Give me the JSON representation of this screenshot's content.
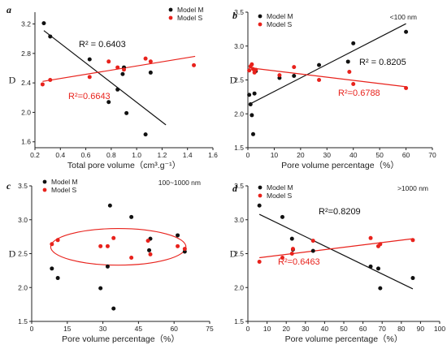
{
  "colors": {
    "model_m": "#111111",
    "model_s": "#e8221c",
    "axis": "#222222"
  },
  "chart_data": [
    {
      "type": "scatter",
      "panel_label": "a",
      "xlabel": "Total pore volume（cm³.g⁻¹）",
      "ylabel": "D",
      "xlim": [
        0.2,
        1.6
      ],
      "ylim": [
        1.52,
        3.36
      ],
      "xticks": [
        0.2,
        0.4,
        0.6,
        0.8,
        1.0,
        1.2,
        1.4,
        1.6
      ],
      "yticks": [
        1.6,
        2.0,
        2.4,
        2.8,
        3.2
      ],
      "xtick_labels": [
        "0.2",
        "0.4",
        "0.6",
        "0.8",
        "1.0",
        "1.2",
        "1.4",
        "1.6"
      ],
      "ytick_labels": [
        "1.6",
        "2.0",
        "2.4",
        "2.8",
        "3.2"
      ],
      "note": "",
      "legend": "top-right",
      "series": [
        {
          "name": "Model M",
          "x": [
            0.27,
            0.32,
            0.63,
            0.78,
            0.85,
            0.89,
            0.9,
            0.92,
            1.07,
            1.11
          ],
          "y": [
            3.21,
            3.03,
            2.72,
            2.14,
            2.31,
            2.52,
            2.61,
            1.99,
            1.7,
            2.54
          ]
        },
        {
          "name": "Model S",
          "x": [
            0.26,
            0.32,
            0.63,
            0.78,
            0.85,
            0.9,
            1.07,
            1.11,
            1.45
          ],
          "y": [
            2.38,
            2.44,
            2.48,
            2.69,
            2.61,
            2.58,
            2.73,
            2.69,
            2.64
          ]
        }
      ],
      "fits": [
        {
          "series": "Model M",
          "x": [
            0.27,
            1.23
          ],
          "y": [
            3.11,
            1.83
          ],
          "label": "R² = 0.6403"
        },
        {
          "series": "Model S",
          "x": [
            0.26,
            1.46
          ],
          "y": [
            2.42,
            2.76
          ],
          "label": "R²=0.6643"
        }
      ]
    },
    {
      "type": "scatter",
      "panel_label": "b",
      "xlabel": "Pore volume percentage（%）",
      "ylabel": "D",
      "xlim": [
        0,
        70
      ],
      "ylim": [
        1.5,
        3.5
      ],
      "xticks": [
        0,
        10,
        20,
        30,
        40,
        50,
        60,
        70
      ],
      "yticks": [
        1.5,
        2.0,
        2.5,
        3.0,
        3.5
      ],
      "xtick_labels": [
        "0",
        "10",
        "20",
        "30",
        "40",
        "50",
        "60",
        "70"
      ],
      "ytick_labels": [
        "1.5",
        "2.0",
        "2.5",
        "3.0",
        "3.5"
      ],
      "note": "<100 nm",
      "legend": "top-left",
      "series": [
        {
          "name": "Model M",
          "x": [
            0.5,
            1.0,
            1.5,
            2.0,
            2.5,
            3.0,
            12.0,
            17.5,
            27.0,
            38.0,
            40.0,
            60.0
          ],
          "y": [
            2.28,
            2.14,
            1.98,
            1.7,
            2.3,
            2.63,
            2.53,
            2.56,
            2.72,
            2.77,
            3.04,
            3.21
          ]
        },
        {
          "name": "Model S",
          "x": [
            0.5,
            1.0,
            1.5,
            2.0,
            2.5,
            3.0,
            12.0,
            17.5,
            27.0,
            38.5,
            40.0,
            60.0
          ],
          "y": [
            2.64,
            2.7,
            2.73,
            2.66,
            2.61,
            2.65,
            2.57,
            2.69,
            2.5,
            2.62,
            2.44,
            2.38
          ]
        }
      ],
      "fits": [
        {
          "series": "Model M",
          "x": [
            0.5,
            60.0
          ],
          "y": [
            2.14,
            3.33
          ],
          "label": "R² = 0.8205"
        },
        {
          "series": "Model S",
          "x": [
            0.5,
            60.0
          ],
          "y": [
            2.68,
            2.4
          ],
          "label": "R²=0.6788"
        }
      ]
    },
    {
      "type": "scatter",
      "panel_label": "c",
      "xlabel": "Pore volume percentage（%）",
      "ylabel": "D",
      "xlim": [
        0,
        75
      ],
      "ylim": [
        1.5,
        3.5
      ],
      "xticks": [
        0,
        15,
        30,
        45,
        60,
        75
      ],
      "yticks": [
        1.5,
        2.0,
        2.5,
        3.0,
        3.5
      ],
      "xtick_labels": [
        "0",
        "15",
        "30",
        "45",
        "60",
        "75"
      ],
      "ytick_labels": [
        "1.5",
        "2.0",
        "2.5",
        "3.0",
        "3.5"
      ],
      "note": "100~1000 nm",
      "legend": "top-left",
      "series": [
        {
          "name": "Model M",
          "x": [
            8.5,
            11.0,
            29.0,
            32.0,
            33.0,
            34.5,
            42.0,
            49.5,
            50.0,
            61.5,
            64.5
          ],
          "y": [
            2.28,
            2.14,
            1.99,
            2.31,
            3.21,
            1.69,
            3.04,
            2.55,
            2.72,
            2.77,
            2.53
          ]
        },
        {
          "name": "Model S",
          "x": [
            8.5,
            11.0,
            29.0,
            32.0,
            34.5,
            42.0,
            49.0,
            50.0,
            61.5,
            64.5
          ],
          "y": [
            2.64,
            2.7,
            2.61,
            2.61,
            2.73,
            2.44,
            2.69,
            2.49,
            2.61,
            2.57
          ]
        }
      ],
      "fits": [],
      "ellipse": {
        "cx": 36.5,
        "cy": 2.6,
        "rx": 28.5,
        "ry": 0.27
      }
    },
    {
      "type": "scatter",
      "panel_label": "d",
      "xlabel": "Pore volume percentage（%）",
      "ylabel": "D",
      "xlim": [
        0,
        100
      ],
      "ylim": [
        1.5,
        3.5
      ],
      "xticks": [
        0,
        10,
        20,
        30,
        40,
        50,
        60,
        70,
        80,
        90,
        100
      ],
      "yticks": [
        1.5,
        2.0,
        2.5,
        3.0,
        3.5
      ],
      "xtick_labels": [
        "0",
        "10",
        "20",
        "30",
        "40",
        "50",
        "60",
        "70",
        "80",
        "90",
        "100"
      ],
      "ytick_labels": [
        "1.5",
        "2.0",
        "2.5",
        "3.0",
        "3.5"
      ],
      "note": ">1000 nm",
      "legend": "top-left",
      "series": [
        {
          "name": "Model M",
          "x": [
            6.0,
            18.0,
            23.0,
            23.5,
            34.0,
            64.0,
            68.0,
            69.0,
            86.0
          ],
          "y": [
            3.21,
            3.04,
            2.72,
            2.56,
            2.54,
            2.31,
            2.28,
            1.99,
            2.14
          ]
        },
        {
          "name": "Model S",
          "x": [
            6.0,
            18.0,
            23.0,
            23.5,
            34.0,
            64.0,
            68.0,
            69.0,
            86.0
          ],
          "y": [
            2.38,
            2.44,
            2.5,
            2.57,
            2.69,
            2.73,
            2.61,
            2.64,
            2.7
          ]
        }
      ],
      "fits": [
        {
          "series": "Model M",
          "x": [
            6.0,
            86.0
          ],
          "y": [
            3.08,
            1.98
          ],
          "label": "R²=0.8209"
        },
        {
          "series": "Model S",
          "x": [
            6.0,
            86.0
          ],
          "y": [
            2.44,
            2.72
          ],
          "label": "R²=0.6463"
        }
      ]
    }
  ]
}
